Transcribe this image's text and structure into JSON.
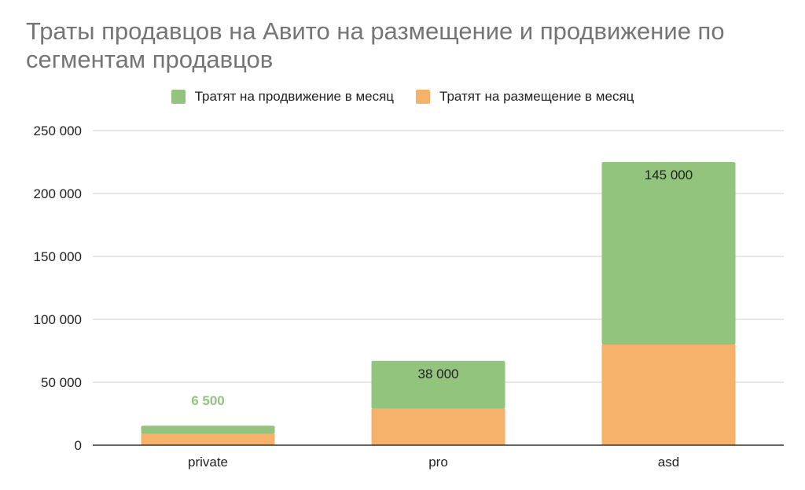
{
  "chart_data": {
    "type": "bar",
    "stacked": true,
    "title": "Траты продавцов на Авито на размещение и продвижение по сегментам продавцов",
    "categories": [
      "private",
      "pro",
      "asd"
    ],
    "series": [
      {
        "name": "Тратят на размещение в месяц",
        "color": "#f6b26b",
        "values": [
          9000,
          29000,
          80000
        ]
      },
      {
        "name": "Тратят на продвижение в месяц",
        "color": "#93c47d",
        "values": [
          6500,
          38000,
          145000
        ]
      }
    ],
    "data_labels": [
      "6 500",
      "38 000",
      "145 000"
    ],
    "data_label_colors": [
      "#93c47d",
      "#222222",
      "#222222"
    ],
    "legend_order": [
      1,
      0
    ],
    "legend_position": "top",
    "ylim": [
      0,
      250000
    ],
    "yticks": [
      0,
      50000,
      100000,
      150000,
      200000,
      250000
    ],
    "ytick_labels": [
      "0",
      "50 000",
      "100 000",
      "150 000",
      "200 000",
      "250 000"
    ],
    "grid": true
  }
}
